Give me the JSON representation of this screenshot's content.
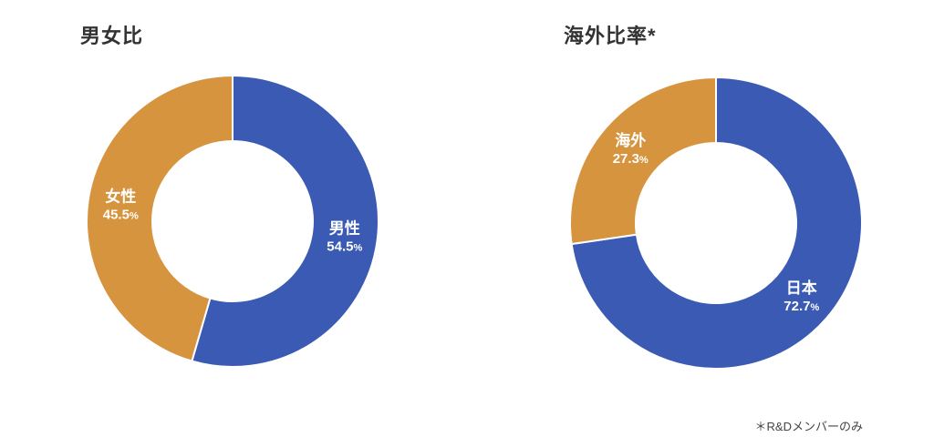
{
  "chart_data": [
    {
      "type": "pie",
      "style": "donut",
      "title": "男女比",
      "categories": [
        "男性",
        "女性"
      ],
      "values": [
        54.5,
        45.5
      ],
      "unit": "%",
      "colors": [
        "#3a5ab4",
        "#d6943f"
      ],
      "label_position": "inside",
      "start_angle_deg": 0,
      "direction": "clockwise",
      "legend": "none"
    },
    {
      "type": "pie",
      "style": "donut",
      "title": "海外比率*",
      "categories": [
        "日本",
        "海外"
      ],
      "values": [
        72.7,
        27.3
      ],
      "unit": "%",
      "colors": [
        "#3a5ab4",
        "#d6943f"
      ],
      "label_position": "inside",
      "start_angle_deg": 0,
      "direction": "clockwise",
      "legend": "none"
    }
  ],
  "footnote": "＊R&Dメンバーのみ"
}
